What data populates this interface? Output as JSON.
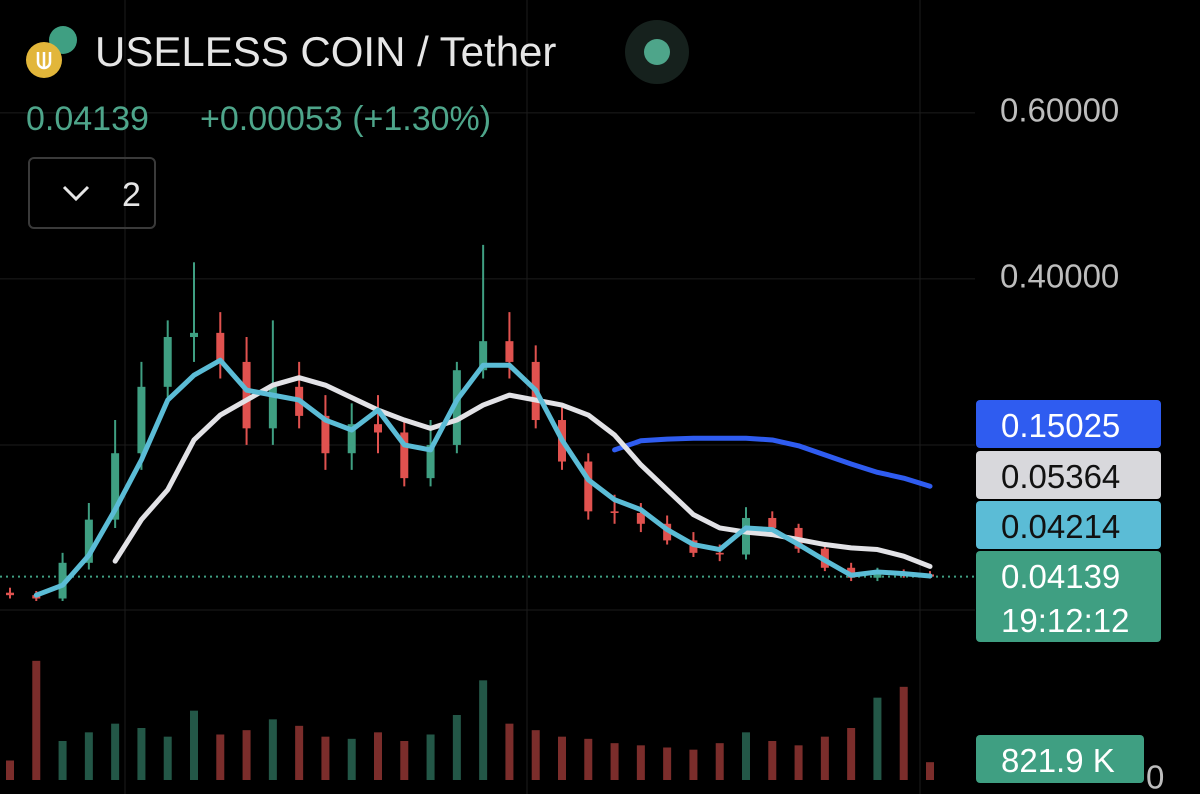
{
  "header": {
    "title": "USELESS COIN / Tether",
    "price": "0.04139",
    "change": "+0.00053 (+1.30%)",
    "indicator_count": "2",
    "countdown": "19:12:12"
  },
  "chart_data": {
    "type": "candlestick",
    "open": [
      0.022,
      0.019,
      0.015,
      0.058,
      0.11,
      0.19,
      0.27,
      0.33,
      0.335,
      0.3,
      0.22,
      0.27,
      0.235,
      0.19,
      0.225,
      0.215,
      0.16,
      0.2,
      0.29,
      0.325,
      0.3,
      0.23,
      0.18,
      0.12,
      0.118,
      0.105,
      0.085,
      0.07,
      0.068,
      0.112,
      0.1,
      0.075,
      0.052,
      0.04,
      0.046,
      0.044
    ],
    "high": [
      0.028,
      0.024,
      0.07,
      0.13,
      0.23,
      0.3,
      0.35,
      0.42,
      0.36,
      0.33,
      0.35,
      0.3,
      0.26,
      0.25,
      0.26,
      0.23,
      0.23,
      0.3,
      0.441,
      0.36,
      0.32,
      0.25,
      0.19,
      0.14,
      0.13,
      0.115,
      0.095,
      0.08,
      0.125,
      0.12,
      0.105,
      0.08,
      0.058,
      0.052,
      0.05,
      0.048
    ],
    "low": [
      0.015,
      0.012,
      0.012,
      0.05,
      0.1,
      0.17,
      0.25,
      0.3,
      0.28,
      0.2,
      0.2,
      0.22,
      0.17,
      0.17,
      0.19,
      0.15,
      0.15,
      0.19,
      0.28,
      0.28,
      0.22,
      0.17,
      0.11,
      0.105,
      0.095,
      0.08,
      0.065,
      0.06,
      0.062,
      0.09,
      0.07,
      0.048,
      0.036,
      0.036,
      0.04,
      0.039
    ],
    "close": [
      0.019,
      0.015,
      0.058,
      0.11,
      0.19,
      0.27,
      0.33,
      0.335,
      0.3,
      0.22,
      0.27,
      0.235,
      0.19,
      0.225,
      0.215,
      0.16,
      0.2,
      0.29,
      0.325,
      0.3,
      0.23,
      0.18,
      0.12,
      0.118,
      0.105,
      0.085,
      0.07,
      0.068,
      0.112,
      0.1,
      0.075,
      0.052,
      0.04,
      0.046,
      0.044,
      0.04139
    ],
    "up_color": "#3f9f82",
    "down_color": "#e0524f",
    "series": [
      {
        "color": "#2f5cf0",
        "values": [
          null,
          null,
          null,
          null,
          null,
          null,
          null,
          null,
          null,
          null,
          null,
          null,
          null,
          null,
          null,
          null,
          null,
          null,
          null,
          null,
          null,
          null,
          null,
          0.194,
          0.205,
          0.207,
          0.208,
          0.208,
          0.208,
          0.206,
          0.199,
          0.188,
          0.177,
          0.167,
          0.16,
          0.15025
        ]
      },
      {
        "color": "#e2e2e6",
        "values": [
          null,
          null,
          null,
          null,
          0.06,
          0.11,
          0.146,
          0.206,
          0.236,
          0.254,
          0.272,
          0.281,
          0.272,
          0.257,
          0.242,
          0.23,
          0.22,
          0.23,
          0.248,
          0.26,
          0.254,
          0.248,
          0.236,
          0.212,
          0.176,
          0.146,
          0.116,
          0.1,
          0.095,
          0.092,
          0.086,
          0.08,
          0.076,
          0.074,
          0.066,
          0.05364
        ]
      },
      {
        "color": "#5bbcd6",
        "values": [
          null,
          0.019,
          0.031,
          0.067,
          0.122,
          0.182,
          0.254,
          0.284,
          0.302,
          0.266,
          0.26,
          0.254,
          0.23,
          0.218,
          0.242,
          0.2,
          0.194,
          0.254,
          0.296,
          0.296,
          0.266,
          0.206,
          0.158,
          0.134,
          0.122,
          0.098,
          0.08,
          0.074,
          0.1,
          0.098,
          0.08,
          0.061,
          0.043,
          0.047,
          0.045,
          0.04214
        ]
      }
    ],
    "ylim": [
      -0.035,
      0.736
    ],
    "yticks": [
      {
        "value": 0.6,
        "label": "0.60000"
      },
      {
        "value": 0.4,
        "label": "0.40000"
      }
    ],
    "grid": true,
    "volume": {
      "values": [
        900000,
        5500000,
        1800000,
        2200000,
        2600000,
        2400000,
        2000000,
        3200000,
        2100000,
        2300000,
        2800000,
        2500000,
        2000000,
        1900000,
        2200000,
        1800000,
        2100000,
        3000000,
        4600000,
        2600000,
        2300000,
        2000000,
        1900000,
        1700000,
        1600000,
        1500000,
        1400000,
        1700000,
        2200000,
        1800000,
        1600000,
        2000000,
        2400000,
        3800000,
        4300000,
        821900
      ],
      "value_labels": [
        null,
        null,
        null,
        null,
        null,
        null,
        null,
        null,
        null,
        null,
        null,
        null,
        null,
        null,
        null,
        null,
        null,
        null,
        null,
        null,
        null,
        null,
        null,
        null,
        null,
        null,
        null,
        null,
        null,
        null,
        null,
        null,
        null,
        null,
        null,
        "821.9 K"
      ],
      "ylim": [
        0,
        6000000
      ],
      "yticks": [
        0
      ]
    }
  }
}
